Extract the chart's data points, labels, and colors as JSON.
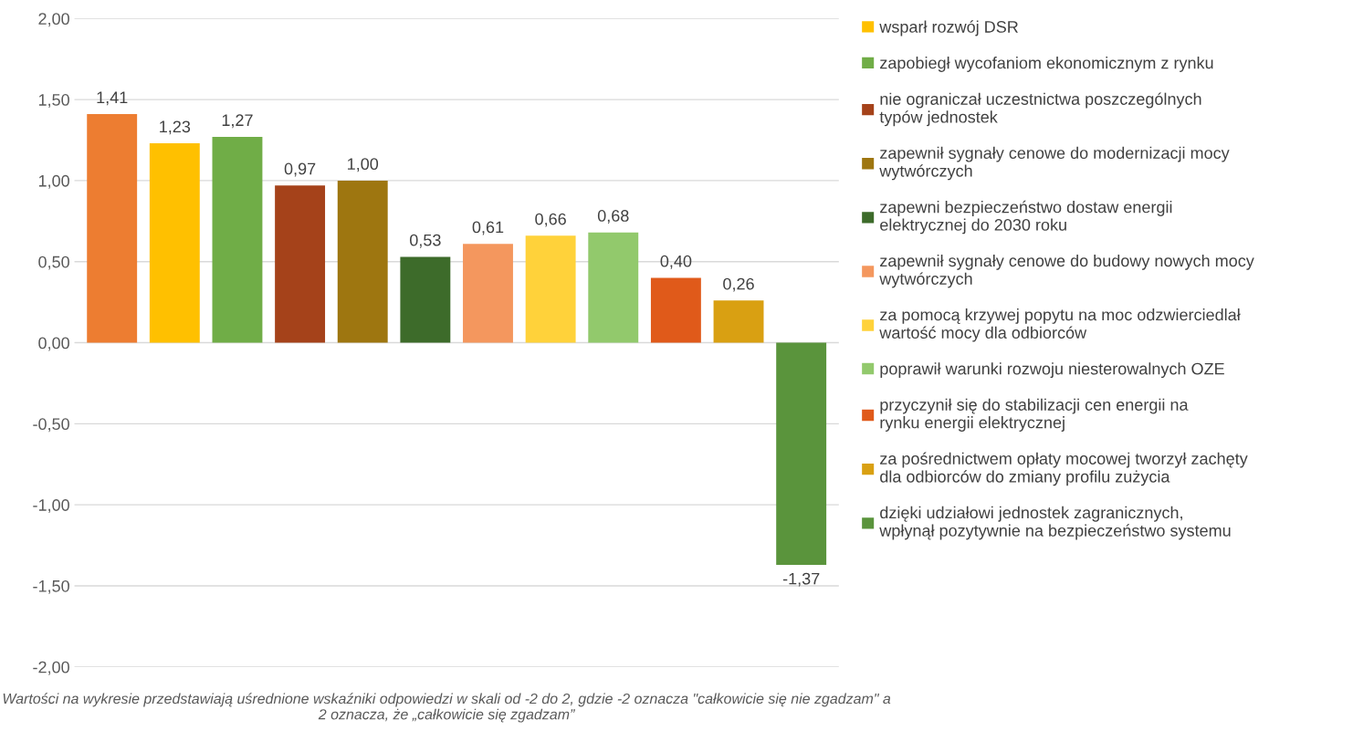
{
  "chart_data": {
    "type": "bar",
    "categories": [
      null,
      null,
      null,
      null,
      null,
      null,
      null,
      null,
      null,
      null,
      null,
      null
    ],
    "series": [
      {
        "color": "#ed7d31",
        "values": [
          1.41,
          null,
          null,
          null,
          null,
          null,
          null,
          null,
          null,
          null,
          null,
          null
        ],
        "value_labels": [
          "1,41",
          null,
          null,
          null,
          null,
          null,
          null,
          null,
          null,
          null,
          null,
          null
        ]
      },
      {
        "name": "wsparł rozwój DSR",
        "color": "#ffc000",
        "values": [
          null,
          1.23,
          null,
          null,
          null,
          null,
          null,
          null,
          null,
          null,
          null,
          null
        ],
        "value_labels": [
          null,
          "1,23",
          null,
          null,
          null,
          null,
          null,
          null,
          null,
          null,
          null,
          null
        ]
      },
      {
        "name": "zapobiegł wycofaniom ekonomicznym z rynku",
        "color": "#70ad47",
        "values": [
          null,
          null,
          1.27,
          null,
          null,
          null,
          null,
          null,
          null,
          null,
          null,
          null
        ],
        "value_labels": [
          null,
          null,
          "1,27",
          null,
          null,
          null,
          null,
          null,
          null,
          null,
          null,
          null
        ]
      },
      {
        "name": "nie ograniczał uczestnictwa poszczególnych typów jednostek",
        "color": "#a5421a",
        "values": [
          null,
          null,
          null,
          0.97,
          null,
          null,
          null,
          null,
          null,
          null,
          null,
          null
        ],
        "value_labels": [
          null,
          null,
          null,
          "0,97",
          null,
          null,
          null,
          null,
          null,
          null,
          null,
          null
        ]
      },
      {
        "name": "zapewnił sygnały cenowe do modernizacji mocy wytwórczych",
        "color": "#9e7610",
        "values": [
          null,
          null,
          null,
          null,
          1.0,
          null,
          null,
          null,
          null,
          null,
          null,
          null
        ],
        "value_labels": [
          null,
          null,
          null,
          null,
          "1,00",
          null,
          null,
          null,
          null,
          null,
          null,
          null
        ]
      },
      {
        "name": "zapewni bezpieczeństwo dostaw energii elektrycznej do 2030 roku",
        "color": "#3d6b2a",
        "values": [
          null,
          null,
          null,
          null,
          null,
          0.53,
          null,
          null,
          null,
          null,
          null,
          null
        ],
        "value_labels": [
          null,
          null,
          null,
          null,
          null,
          "0,53",
          null,
          null,
          null,
          null,
          null,
          null
        ]
      },
      {
        "name": "zapewnił sygnały cenowe do budowy nowych mocy wytwórczych",
        "color": "#f4975e",
        "values": [
          null,
          null,
          null,
          null,
          null,
          null,
          0.61,
          null,
          null,
          null,
          null,
          null
        ],
        "value_labels": [
          null,
          null,
          null,
          null,
          null,
          null,
          "0,61",
          null,
          null,
          null,
          null,
          null
        ]
      },
      {
        "name": "za pomocą krzywej popytu na moc odzwierciedlał wartość mocy dla odbiorców",
        "color": "#ffd23a",
        "values": [
          null,
          null,
          null,
          null,
          null,
          null,
          null,
          0.66,
          null,
          null,
          null,
          null
        ],
        "value_labels": [
          null,
          null,
          null,
          null,
          null,
          null,
          null,
          "0,66",
          null,
          null,
          null,
          null
        ]
      },
      {
        "name": "poprawił warunki rozwoju niesterowalnych OZE",
        "color": "#92c96c",
        "values": [
          null,
          null,
          null,
          null,
          null,
          null,
          null,
          null,
          0.68,
          null,
          null,
          null
        ],
        "value_labels": [
          null,
          null,
          null,
          null,
          null,
          null,
          null,
          null,
          "0,68",
          null,
          null,
          null
        ]
      },
      {
        "name": "przyczynił się do stabilizacji cen energii na rynku energii elektrycznej",
        "color": "#e05a1a",
        "values": [
          null,
          null,
          null,
          null,
          null,
          null,
          null,
          null,
          null,
          0.4,
          null,
          null
        ],
        "value_labels": [
          null,
          null,
          null,
          null,
          null,
          null,
          null,
          null,
          null,
          "0,40",
          null,
          null
        ]
      },
      {
        "name": "za pośrednictwem opłaty mocowej tworzył zachęty dla odbiorców do zmiany profilu zużycia",
        "color": "#d9a012",
        "values": [
          null,
          null,
          null,
          null,
          null,
          null,
          null,
          null,
          null,
          null,
          0.26,
          null
        ],
        "value_labels": [
          null,
          null,
          null,
          null,
          null,
          null,
          null,
          null,
          null,
          null,
          "0,26",
          null
        ]
      },
      {
        "name": "dzięki udziałowi jednostek zagranicznych, wpłynął pozytywnie na bezpieczeństwo systemu",
        "color": "#5a943c",
        "values": [
          null,
          null,
          null,
          null,
          null,
          null,
          null,
          null,
          null,
          null,
          null,
          -1.37
        ],
        "value_labels": [
          null,
          null,
          null,
          null,
          null,
          null,
          null,
          null,
          null,
          null,
          null,
          "-1,37"
        ]
      }
    ],
    "ylim": [
      -2,
      2
    ],
    "yticks": [
      {
        "value": -2,
        "label": "-2,00"
      },
      {
        "value": -1.5,
        "label": "-1,50"
      },
      {
        "value": -1,
        "label": "-1,00"
      },
      {
        "value": -0.5,
        "label": "-0,50"
      },
      {
        "value": 0,
        "label": "0,00"
      },
      {
        "value": 0.5,
        "label": "0,50"
      },
      {
        "value": 1,
        "label": "1,00"
      },
      {
        "value": 1.5,
        "label": "1,50"
      },
      {
        "value": 2,
        "label": "2,00"
      }
    ],
    "grid": "y",
    "legend": "right",
    "tick_labels": "y",
    "annotations": [
      "Wartości na wykresie przedstawiają uśrednione wskaźniki odpowiedzi w skali od -2 do 2, gdzie -2 oznacza \"całkowicie się nie zgadzam\" a 2 oznacza, że „całkowicie się zgadzam”"
    ]
  }
}
